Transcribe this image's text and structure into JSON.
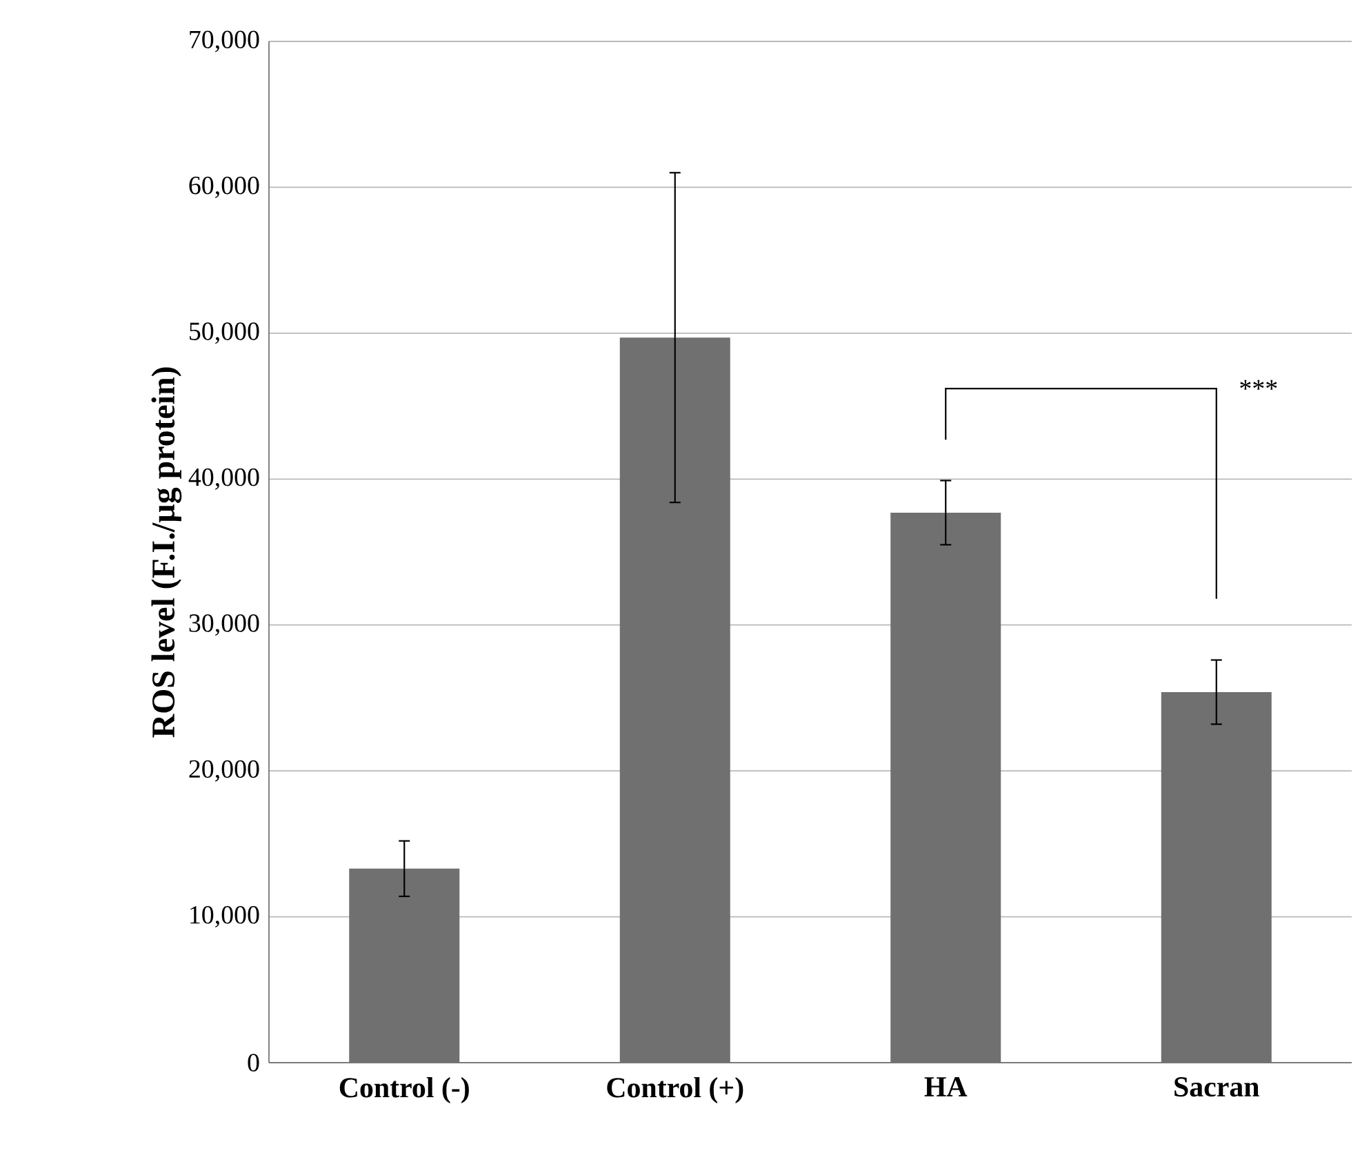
{
  "chart_data": {
    "type": "bar",
    "ylabel": "ROS level (F.I./µg protein)",
    "categories": [
      "Control (-)",
      "Control (+)",
      "HA",
      "Sacran"
    ],
    "values": [
      13300,
      49700,
      37700,
      25400
    ],
    "errors": [
      1900,
      11300,
      2200,
      2200
    ],
    "color": "#707070",
    "ylim": [
      0,
      70000
    ],
    "yticks": [
      {
        "value": 0,
        "label": "0"
      },
      {
        "value": 10000,
        "label": "10,000"
      },
      {
        "value": 20000,
        "label": "20,000"
      },
      {
        "value": 30000,
        "label": "30,000"
      },
      {
        "value": 40000,
        "label": "40,000"
      },
      {
        "value": 50000,
        "label": "50,000"
      },
      {
        "value": 60000,
        "label": "60,000"
      },
      {
        "value": 70000,
        "label": "70,000"
      }
    ],
    "grid": "y",
    "annotations": [
      "***"
    ]
  }
}
